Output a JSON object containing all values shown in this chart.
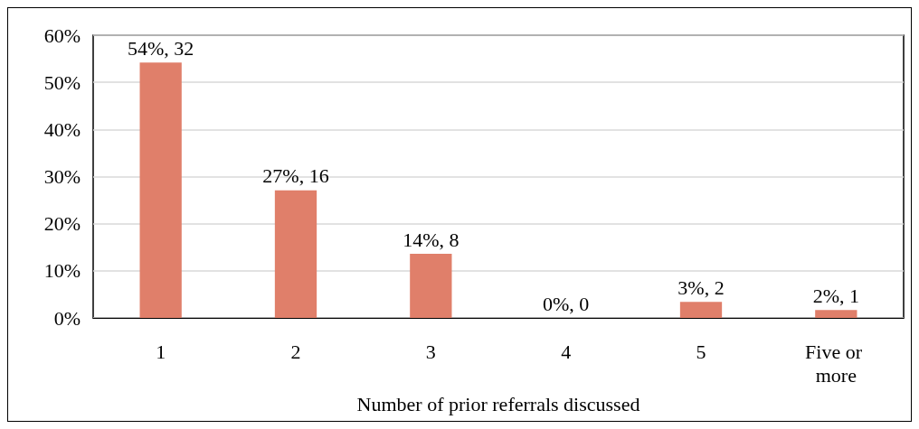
{
  "chart_data": {
    "type": "bar",
    "xlabel": "Number of prior referrals discussed",
    "categories": [
      "1",
      "2",
      "3",
      "4",
      "5",
      "Five or more"
    ],
    "values": [
      54.2,
      27.1,
      13.6,
      0,
      3.4,
      1.7
    ],
    "value_labels": [
      "54%, 32",
      "27%, 16",
      "14%, 8",
      "0%, 0",
      "3%, 2",
      "2%, 1"
    ],
    "color": "#e07f6a",
    "ylim": [
      0,
      60
    ],
    "yticks": [
      {
        "value": 0,
        "label": "0%"
      },
      {
        "value": 10,
        "label": "10%"
      },
      {
        "value": 20,
        "label": "20%"
      },
      {
        "value": 30,
        "label": "30%"
      },
      {
        "value": 40,
        "label": "40%"
      },
      {
        "value": 50,
        "label": "50%"
      },
      {
        "value": 60,
        "label": "60%"
      }
    ],
    "grid": "y"
  }
}
